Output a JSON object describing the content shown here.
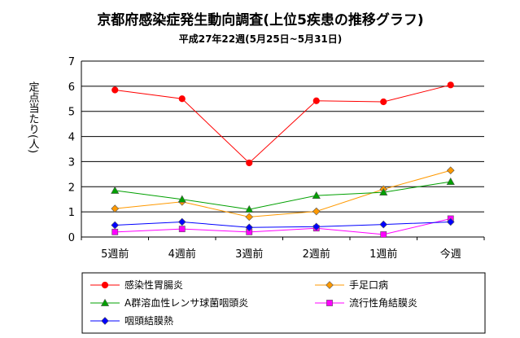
{
  "chart_data": {
    "type": "line",
    "title": "京都府感染症発生動向調査(上位5疾患の推移グラフ)",
    "subtitle": "平成27年22週(5月25日~5月31日)",
    "ylabel": "定点当たり(人)",
    "categories": [
      "5週前",
      "4週前",
      "3週前",
      "2週前",
      "1週前",
      "今週"
    ],
    "ylim": [
      0,
      7
    ],
    "yticks": [
      "0",
      "1",
      "2",
      "3",
      "4",
      "5",
      "6",
      "7"
    ],
    "grid": true,
    "legend_position": "bottom",
    "series": [
      {
        "name": "感染性胃腸炎",
        "color": "#ff0000",
        "marker": "circle",
        "values": [
          5.85,
          5.5,
          2.95,
          5.42,
          5.38,
          6.05
        ]
      },
      {
        "name": "手足口病",
        "color": "#ff9900",
        "marker": "diamond",
        "values": [
          1.13,
          1.4,
          0.8,
          1.02,
          1.9,
          2.65
        ]
      },
      {
        "name": "A群溶血性レンサ球菌咽頭炎",
        "color": "#00a000",
        "marker": "triangle",
        "values": [
          1.85,
          1.5,
          1.1,
          1.65,
          1.78,
          2.2
        ]
      },
      {
        "name": "流行性角結膜炎",
        "color": "#ff00ff",
        "marker": "square",
        "values": [
          0.2,
          0.32,
          0.2,
          0.35,
          0.1,
          0.73
        ]
      },
      {
        "name": "咽頭結膜熱",
        "color": "#0000ff",
        "marker": "diamond",
        "values": [
          0.47,
          0.6,
          0.38,
          0.41,
          0.5,
          0.6
        ]
      }
    ]
  }
}
